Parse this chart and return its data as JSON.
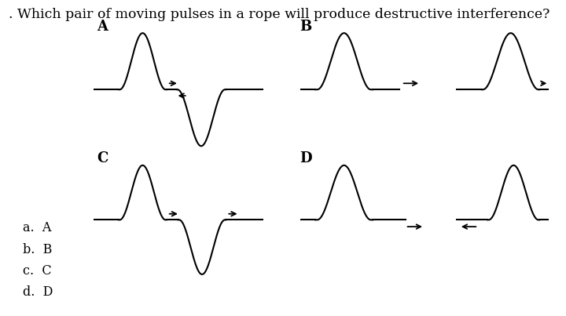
{
  "title": ". Which pair of moving pulses in a rope will produce destructive interference?",
  "title_fontsize": 12.5,
  "background_color": "#ffffff",
  "answer_options": [
    "a.  A",
    "b.  B",
    "c.  C",
    "d.  D"
  ],
  "labels": [
    "A",
    "B",
    "C",
    "D"
  ],
  "fig_w": 7.2,
  "fig_h": 4.03,
  "dpi": 100
}
